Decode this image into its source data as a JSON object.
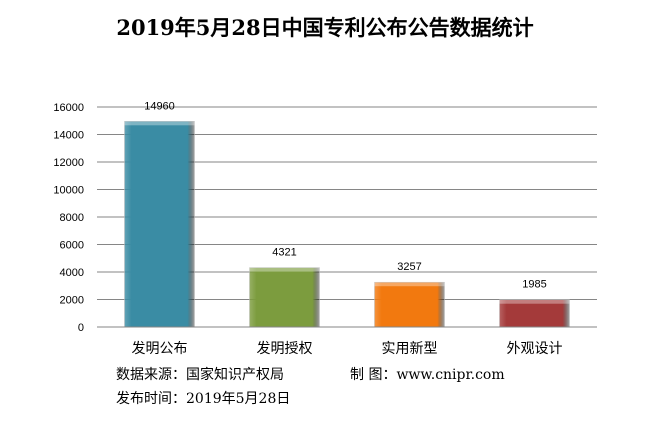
{
  "chart_data": {
    "type": "bar",
    "title": "2019年5月28日中国专利公布公告数据统计",
    "categories": [
      "发明公布",
      "发明授权",
      "实用新型",
      "外观设计"
    ],
    "values": [
      14960,
      4321,
      3257,
      1985
    ],
    "data_labels": [
      "14960",
      "4321",
      "3257",
      "1985"
    ],
    "colors": [
      "#3a8ca4",
      "#7c9c3e",
      "#f2790f",
      "#a43a3a"
    ],
    "ylim": [
      0,
      16000
    ],
    "yticks": [
      0,
      2000,
      4000,
      6000,
      8000,
      10000,
      12000,
      14000,
      16000
    ],
    "ytick_labels": [
      "0",
      "2000",
      "4000",
      "6000",
      "8000",
      "10000",
      "12000",
      "14000",
      "16000"
    ],
    "grid": true,
    "xlabel": "",
    "ylabel": ""
  },
  "footer": {
    "source_label": "数据来源：国家知识产权局",
    "maker_label": "制 图：www.cnipr.com",
    "date_label": "发布时间：2019年5月28日"
  }
}
